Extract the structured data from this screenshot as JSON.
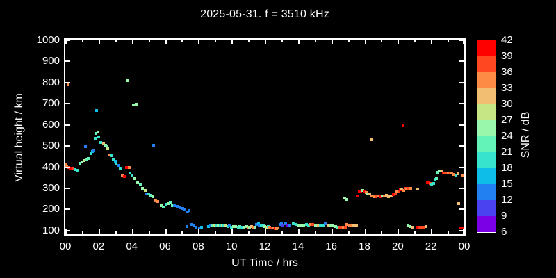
{
  "chart_data": {
    "type": "scatter",
    "title": "2025-05-31. f = 3510 kHz",
    "xlabel": "UT Time / hrs",
    "ylabel": "Virtual height / km",
    "xlim": [
      0,
      24
    ],
    "ylim": [
      80,
      1000
    ],
    "grid": false,
    "x_tick_hours": [
      0,
      2,
      4,
      6,
      8,
      10,
      12,
      14,
      16,
      18,
      20,
      22,
      24
    ],
    "x_tick_labels": [
      "00",
      "02",
      "04",
      "06",
      "08",
      "10",
      "12",
      "14",
      "16",
      "18",
      "20",
      "22",
      "00"
    ],
    "x_minor_tick_hours": [
      1,
      3,
      5,
      7,
      9,
      11,
      13,
      15,
      17,
      19,
      21,
      23
    ],
    "y_ticks": [
      100,
      200,
      300,
      400,
      500,
      600,
      700,
      800,
      900,
      1000
    ],
    "y_tick_labels": [
      "100",
      "200",
      "300",
      "400",
      "500",
      "600",
      "700",
      "800",
      "900",
      "1000"
    ],
    "colorbar": {
      "label": "SNR / dB",
      "min": 6,
      "max": 42,
      "step": 3,
      "tick_labels_top_to_bottom": [
        "42",
        "39",
        "36",
        "33",
        "30",
        "27",
        "24",
        "21",
        "18",
        "15",
        "12",
        "9",
        "6"
      ],
      "colors_low_to_high": [
        "#7B00E6",
        "#4A42F0",
        "#2380F0",
        "#0FBEE8",
        "#38E3CE",
        "#63F2B8",
        "#99F7AC",
        "#C6E585",
        "#F2BE72",
        "#FD8A45",
        "#FF4822",
        "#FF0000"
      ]
    },
    "points_format": [
      "ut_hours",
      "virtual_height_km",
      "snr_db"
    ],
    "points": [
      [
        0.03,
        412,
        34
      ],
      [
        0.1,
        399,
        34
      ],
      [
        0.2,
        395,
        37
      ],
      [
        0.33,
        390,
        40
      ],
      [
        0.45,
        388,
        37
      ],
      [
        0.6,
        385,
        19
      ],
      [
        0.74,
        382,
        19
      ],
      [
        0.88,
        416,
        22
      ],
      [
        1.0,
        423,
        25
      ],
      [
        1.12,
        428,
        28
      ],
      [
        1.25,
        433,
        22
      ],
      [
        1.2,
        494,
        13
      ],
      [
        1.4,
        438,
        22
      ],
      [
        1.55,
        462,
        19
      ],
      [
        1.63,
        470,
        16
      ],
      [
        1.72,
        474,
        13
      ],
      [
        1.78,
        535,
        19
      ],
      [
        1.85,
        558,
        22
      ],
      [
        1.95,
        562,
        25
      ],
      [
        1.9,
        665,
        16
      ],
      [
        2.02,
        540,
        19
      ],
      [
        2.15,
        515,
        19
      ],
      [
        2.3,
        512,
        31
      ],
      [
        2.42,
        500,
        25
      ],
      [
        2.5,
        496,
        22
      ],
      [
        2.55,
        484,
        28
      ],
      [
        2.62,
        456,
        34
      ],
      [
        2.76,
        452,
        19
      ],
      [
        2.9,
        431,
        19
      ],
      [
        3.0,
        425,
        16
      ],
      [
        3.07,
        411,
        19
      ],
      [
        3.16,
        406,
        13
      ],
      [
        3.3,
        393,
        19
      ],
      [
        3.42,
        357,
        34
      ],
      [
        3.55,
        352,
        40
      ],
      [
        3.66,
        397,
        40
      ],
      [
        3.84,
        397,
        34
      ],
      [
        3.9,
        368,
        19
      ],
      [
        4.0,
        360,
        19
      ],
      [
        0.17,
        785,
        34
      ],
      [
        3.72,
        807,
        25
      ],
      [
        4.1,
        692,
        25
      ],
      [
        4.28,
        694,
        25
      ],
      [
        5.32,
        502,
        13
      ],
      [
        4.16,
        343,
        25
      ],
      [
        4.33,
        324,
        25
      ],
      [
        4.5,
        314,
        22
      ],
      [
        4.64,
        297,
        25
      ],
      [
        4.8,
        288,
        28
      ],
      [
        4.88,
        272,
        13
      ],
      [
        5.0,
        270,
        19
      ],
      [
        5.13,
        264,
        22
      ],
      [
        5.26,
        258,
        25
      ],
      [
        5.45,
        239,
        34
      ],
      [
        5.58,
        234,
        34
      ],
      [
        5.75,
        215,
        25
      ],
      [
        5.9,
        207,
        22
      ],
      [
        6.05,
        220,
        19
      ],
      [
        6.2,
        223,
        25
      ],
      [
        6.33,
        231,
        22
      ],
      [
        6.45,
        215,
        22
      ],
      [
        6.58,
        214,
        13
      ],
      [
        6.75,
        211,
        13
      ],
      [
        6.9,
        205,
        13
      ],
      [
        7.07,
        202,
        13
      ],
      [
        7.2,
        196,
        13
      ],
      [
        7.35,
        185,
        13
      ],
      [
        7.45,
        193,
        13
      ],
      [
        7.3,
        116,
        13
      ],
      [
        7.55,
        125,
        13
      ],
      [
        7.72,
        124,
        13
      ],
      [
        7.86,
        113,
        13
      ],
      [
        8.05,
        111,
        13
      ],
      [
        8.2,
        112,
        16
      ],
      [
        8.6,
        116,
        16
      ],
      [
        8.72,
        120,
        13
      ],
      [
        8.82,
        122,
        22
      ],
      [
        8.95,
        124,
        28
      ],
      [
        9.08,
        120,
        19
      ],
      [
        9.2,
        123,
        25
      ],
      [
        9.32,
        118,
        19
      ],
      [
        9.45,
        124,
        28
      ],
      [
        9.55,
        118,
        19
      ],
      [
        9.67,
        122,
        28
      ],
      [
        9.77,
        117,
        19
      ],
      [
        9.87,
        119,
        13
      ],
      [
        10.0,
        114,
        19
      ],
      [
        10.12,
        117,
        25
      ],
      [
        10.25,
        115,
        25
      ],
      [
        10.4,
        112,
        19
      ],
      [
        10.5,
        115,
        22
      ],
      [
        10.62,
        112,
        19
      ],
      [
        10.75,
        114,
        25
      ],
      [
        10.9,
        116,
        25
      ],
      [
        11.0,
        110,
        34
      ],
      [
        11.1,
        114,
        25
      ],
      [
        11.22,
        116,
        31
      ],
      [
        11.32,
        112,
        34
      ],
      [
        11.42,
        114,
        25
      ],
      [
        11.5,
        126,
        13
      ],
      [
        11.62,
        130,
        16
      ],
      [
        11.68,
        124,
        13
      ],
      [
        11.8,
        120,
        19
      ],
      [
        11.9,
        118,
        19
      ],
      [
        12.0,
        116,
        25
      ],
      [
        12.12,
        114,
        28
      ],
      [
        12.22,
        115,
        19
      ],
      [
        12.3,
        112,
        34
      ],
      [
        12.42,
        110,
        37
      ],
      [
        12.52,
        108,
        34
      ],
      [
        12.62,
        105,
        40
      ],
      [
        12.72,
        107,
        34
      ],
      [
        12.8,
        110,
        34
      ],
      [
        12.9,
        126,
        13
      ],
      [
        13.0,
        129,
        13
      ],
      [
        13.1,
        121,
        10
      ],
      [
        13.25,
        128,
        13
      ],
      [
        13.38,
        122,
        7
      ],
      [
        13.45,
        124,
        13
      ],
      [
        13.72,
        130,
        19
      ],
      [
        13.9,
        125,
        19
      ],
      [
        14.05,
        122,
        25
      ],
      [
        14.2,
        120,
        25
      ],
      [
        14.35,
        122,
        25
      ],
      [
        14.5,
        125,
        19
      ],
      [
        14.65,
        122,
        19
      ],
      [
        14.78,
        125,
        34
      ],
      [
        14.9,
        127,
        37
      ],
      [
        15.05,
        124,
        25
      ],
      [
        15.2,
        123,
        31
      ],
      [
        15.35,
        120,
        19
      ],
      [
        15.5,
        122,
        19
      ],
      [
        15.62,
        128,
        13
      ],
      [
        15.8,
        122,
        31
      ],
      [
        15.95,
        120,
        25
      ],
      [
        16.1,
        121,
        25
      ],
      [
        16.25,
        115,
        25
      ],
      [
        16.35,
        114,
        22
      ],
      [
        16.5,
        112,
        37
      ],
      [
        16.62,
        112,
        37
      ],
      [
        16.72,
        113,
        34
      ],
      [
        16.83,
        112,
        37
      ],
      [
        16.95,
        125,
        34
      ],
      [
        17.07,
        124,
        34
      ],
      [
        17.18,
        122,
        34
      ],
      [
        17.3,
        120,
        31
      ],
      [
        17.42,
        122,
        31
      ],
      [
        17.52,
        121,
        31
      ],
      [
        16.8,
        250,
        25
      ],
      [
        16.9,
        245,
        25
      ],
      [
        17.57,
        262,
        40
      ],
      [
        17.7,
        280,
        40
      ],
      [
        17.78,
        285,
        40
      ],
      [
        17.9,
        287,
        25
      ],
      [
        18.0,
        283,
        40
      ],
      [
        18.1,
        277,
        34
      ],
      [
        18.2,
        272,
        25
      ],
      [
        18.3,
        270,
        31
      ],
      [
        18.45,
        262,
        34
      ],
      [
        18.57,
        259,
        34
      ],
      [
        18.68,
        258,
        37
      ],
      [
        18.8,
        260,
        34
      ],
      [
        18.92,
        258,
        40
      ],
      [
        19.05,
        262,
        25
      ],
      [
        19.18,
        261,
        34
      ],
      [
        19.3,
        263,
        31
      ],
      [
        19.45,
        258,
        31
      ],
      [
        19.6,
        262,
        31
      ],
      [
        19.72,
        268,
        40
      ],
      [
        19.85,
        272,
        37
      ],
      [
        19.95,
        285,
        34
      ],
      [
        20.05,
        283,
        37
      ],
      [
        20.15,
        290,
        40
      ],
      [
        20.25,
        293,
        31
      ],
      [
        20.35,
        288,
        34
      ],
      [
        20.45,
        296,
        37
      ],
      [
        20.55,
        295,
        34
      ],
      [
        20.65,
        297,
        37
      ],
      [
        20.78,
        296,
        34
      ],
      [
        21.2,
        295,
        31
      ],
      [
        21.78,
        323,
        40
      ],
      [
        21.88,
        328,
        40
      ],
      [
        21.95,
        321,
        37
      ],
      [
        22.05,
        315,
        19
      ],
      [
        22.15,
        320,
        19
      ],
      [
        22.25,
        338,
        19
      ],
      [
        22.32,
        343,
        22
      ],
      [
        22.4,
        372,
        22
      ],
      [
        22.5,
        378,
        25
      ],
      [
        22.6,
        380,
        28
      ],
      [
        22.68,
        378,
        31
      ],
      [
        22.75,
        368,
        40
      ],
      [
        22.85,
        370,
        37
      ],
      [
        22.95,
        368,
        37
      ],
      [
        23.05,
        370,
        34
      ],
      [
        23.15,
        368,
        37
      ],
      [
        23.25,
        370,
        34
      ],
      [
        23.35,
        363,
        34
      ],
      [
        23.5,
        360,
        19
      ],
      [
        23.62,
        365,
        31
      ],
      [
        23.87,
        360,
        34
      ],
      [
        23.65,
        226,
        31
      ],
      [
        18.45,
        528,
        31
      ],
      [
        20.3,
        592,
        40
      ],
      [
        20.6,
        118,
        25
      ],
      [
        20.72,
        116,
        25
      ],
      [
        20.85,
        114,
        31
      ],
      [
        21.2,
        113,
        40
      ],
      [
        21.32,
        112,
        37
      ],
      [
        21.45,
        113,
        37
      ],
      [
        21.57,
        112,
        37
      ],
      [
        21.7,
        115,
        31
      ],
      [
        23.78,
        110,
        40
      ],
      [
        23.92,
        109,
        40
      ]
    ]
  },
  "style_colors": {
    "background": "#000000",
    "foreground": "#ffffff"
  }
}
